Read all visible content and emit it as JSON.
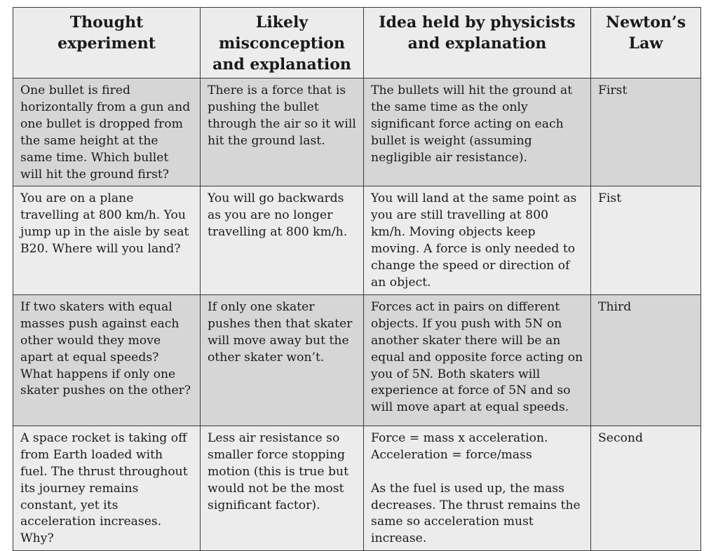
{
  "table": {
    "headers": [
      "Thought experiment",
      "Likely misconception and explanation",
      "Idea held by physicists and explanation",
      "Newton’s Law"
    ],
    "rows": [
      {
        "thought_experiment": "One bullet is fired horizontally from a gun and one bullet is dropped from the same height at the same time.  Which bullet will hit the ground first?",
        "misconception": "There is a force that is pushing the bullet through the air so it will hit the ground last.",
        "physicists_idea": "The bullets will hit the ground at the same time as the only significant force acting on each bullet is weight (assuming negligible air resistance).",
        "law": "First"
      },
      {
        "thought_experiment": "You are on a plane travelling at 800 km/h. You jump up in the aisle by seat B20. Where will you land?",
        "misconception": "You will go backwards as you are no longer travelling at 800 km/h.",
        "physicists_idea": "You will land at the same point as you are still travelling at 800 km/h. Moving objects keep moving. A force is only needed to change the speed or direction of an object.",
        "law": "Fist"
      },
      {
        "thought_experiment": "If two skaters with equal masses push against each other would they move apart at equal speeds?\nWhat happens if only one skater pushes on the other?",
        "misconception": "If only one skater pushes then that skater will move away but the other skater won’t.",
        "physicists_idea": "Forces act in pairs on different objects. If you push with 5N on another skater there will be an equal and opposite force acting on you of 5N. Both skaters will experience at force of 5N and so will move apart at equal speeds.",
        "law": "Third"
      },
      {
        "thought_experiment": "A space rocket is taking off from Earth loaded with fuel. The thrust throughout its journey remains constant, yet its acceleration increases. Why?",
        "misconception": "Less air resistance so smaller force stopping motion (this is true but would not be the most significant factor).",
        "physicists_idea": "Force  = mass x acceleration.\nAcceleration = force/mass\n\nAs the fuel is used up, the mass decreases. The thrust remains the same so acceleration must increase.",
        "law": "Second"
      }
    ]
  }
}
